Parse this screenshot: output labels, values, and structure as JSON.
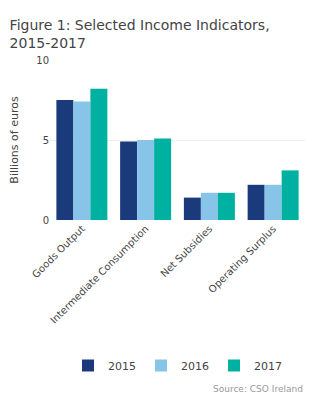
{
  "chart_data": {
    "type": "bar",
    "title": "Figure 1: Selected Income Indicators,\n2015-2017",
    "categories": [
      "Goods Output",
      "Intermediate Consumption",
      "Net Subsidies",
      "Operating Surplus"
    ],
    "series": [
      {
        "name": "2015",
        "color": "#1a3a7c",
        "values": [
          7.5,
          4.9,
          1.4,
          2.2
        ]
      },
      {
        "name": "2016",
        "color": "#87c4e8",
        "values": [
          7.4,
          5.0,
          1.7,
          2.2
        ]
      },
      {
        "name": "2017",
        "color": "#00b0a0",
        "values": [
          8.2,
          5.1,
          1.7,
          3.1
        ]
      }
    ],
    "ylabel": "Billions of euros",
    "ylim": [
      0,
      10
    ],
    "yticks": [
      0,
      5,
      10
    ],
    "grid": true,
    "legend": "bottom",
    "annotations": [
      "Source: CSO Ireland"
    ]
  }
}
